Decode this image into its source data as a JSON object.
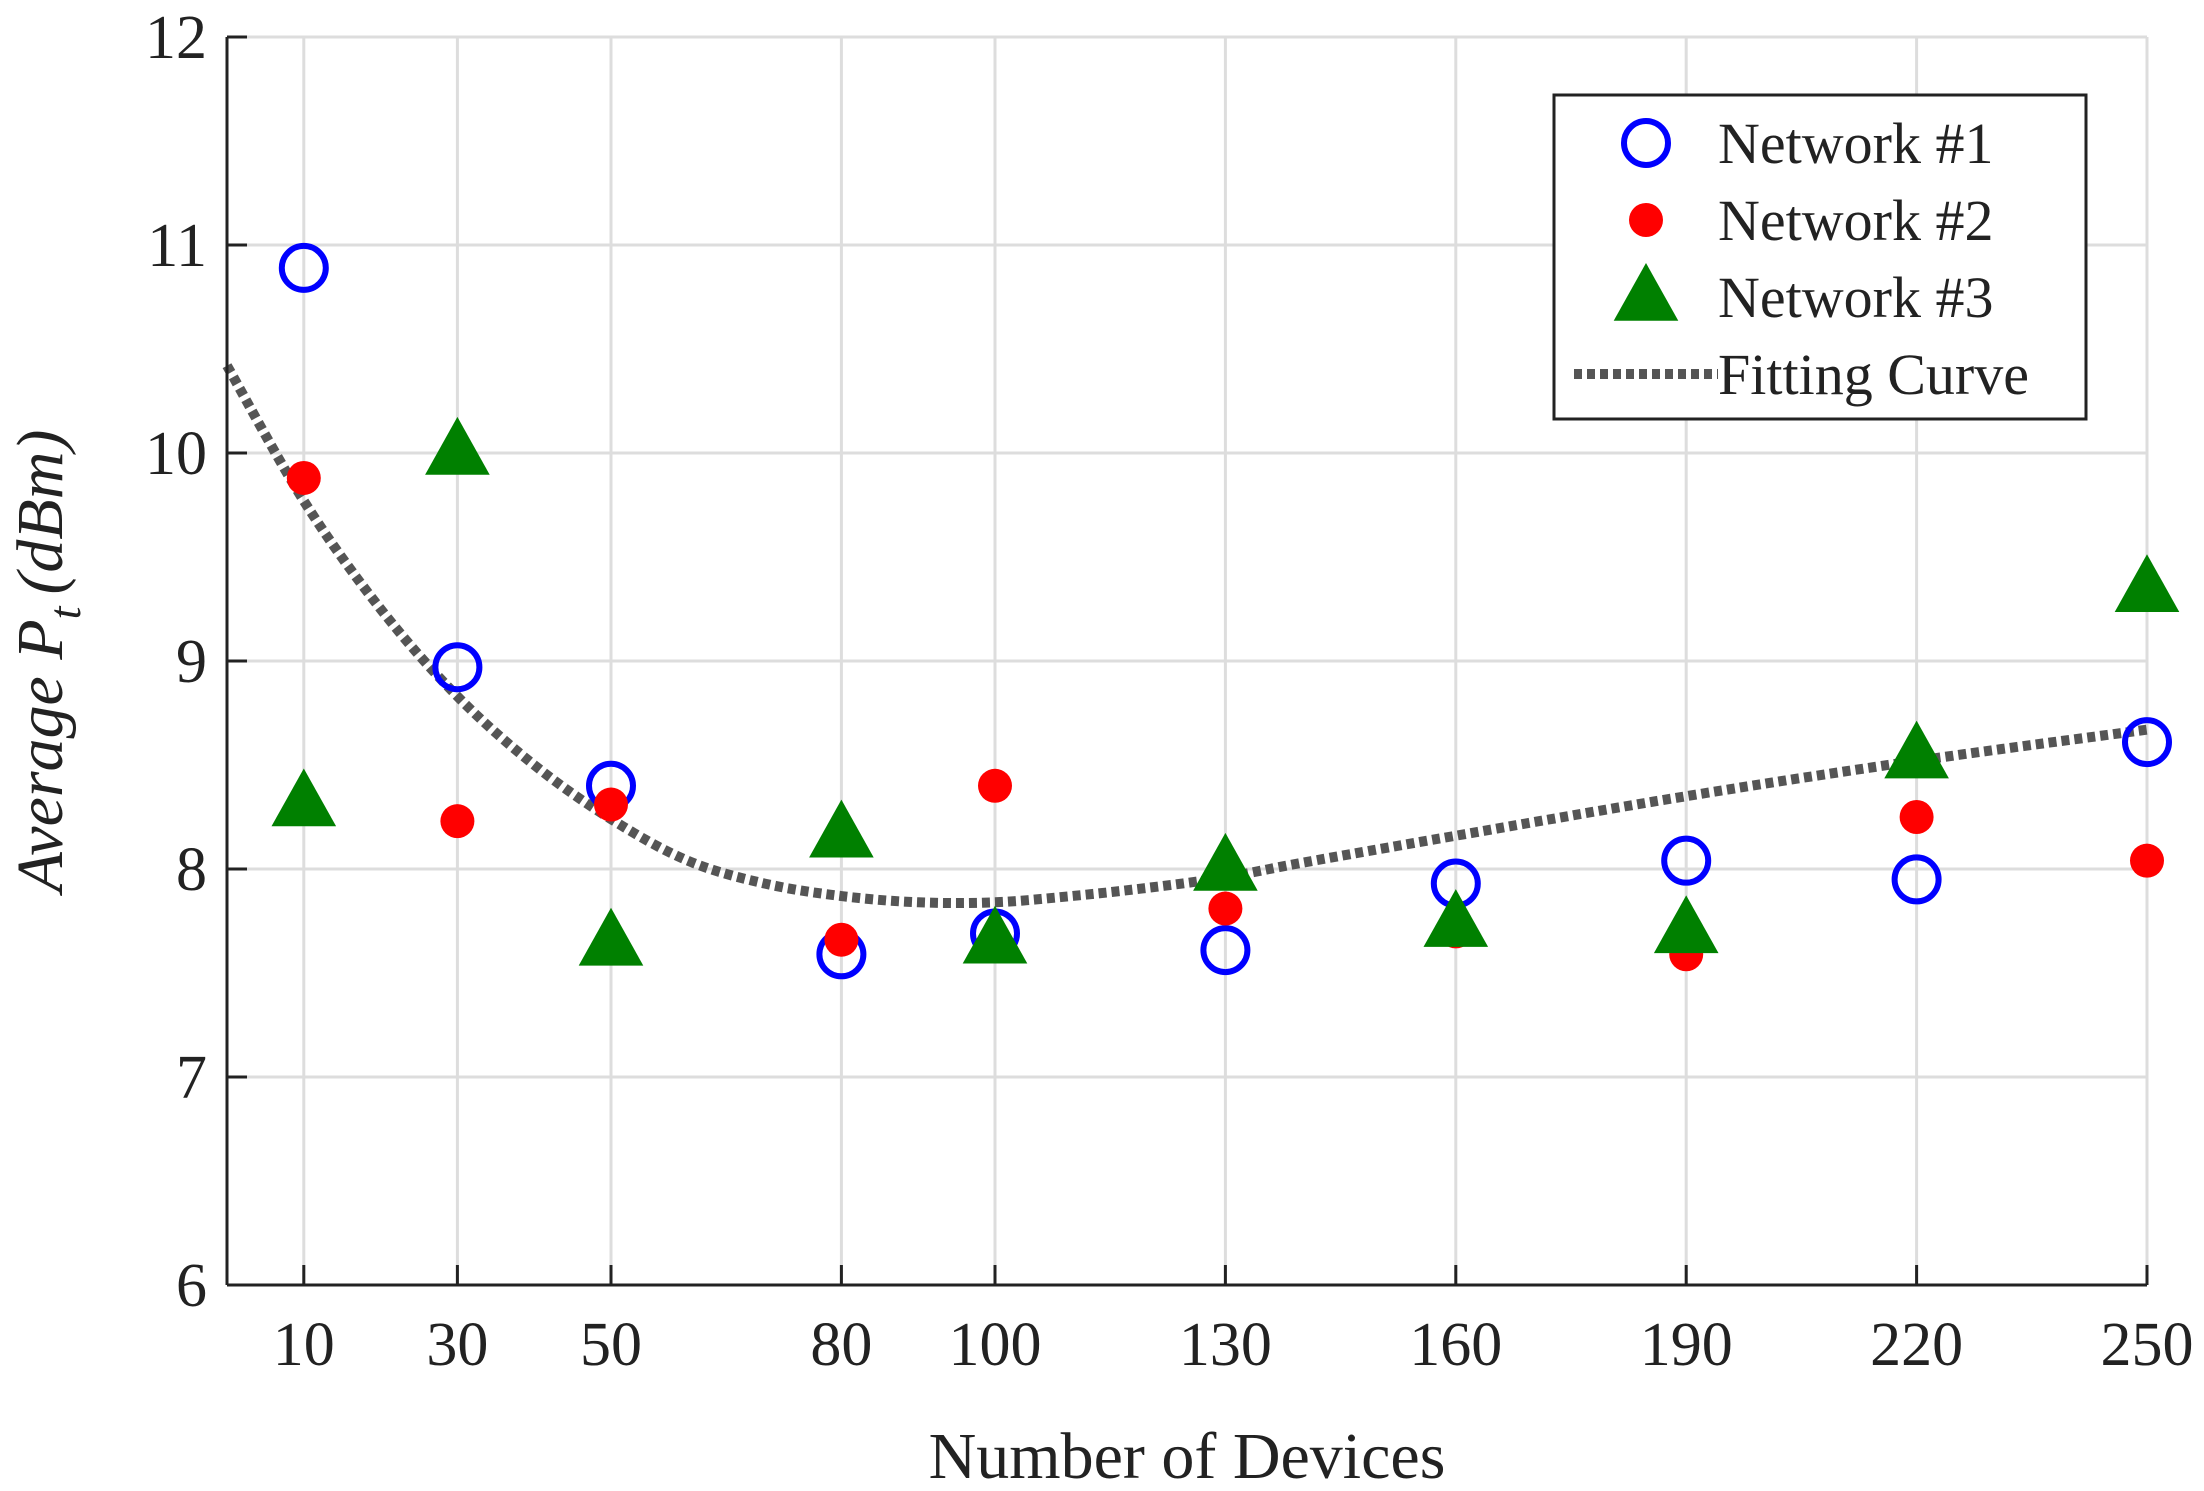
{
  "chart_data": {
    "type": "scatter",
    "xlabel": "Number of Devices",
    "ylabel_main": "Average P",
    "ylabel_sub": "t",
    "ylabel_unit": "(dBm)",
    "xlim": [
      0,
      250
    ],
    "ylim": [
      6,
      12
    ],
    "x_ticks": [
      10,
      30,
      50,
      80,
      100,
      130,
      160,
      190,
      220,
      250
    ],
    "y_ticks": [
      6,
      7,
      8,
      9,
      10,
      11,
      12
    ],
    "grid": true,
    "legend_position": "top-right",
    "series": [
      {
        "name": "Network #1",
        "marker": "open-circle",
        "color": "#0000ff",
        "x": [
          10,
          30,
          50,
          80,
          100,
          130,
          160,
          190,
          220,
          250
        ],
        "y": [
          10.89,
          8.97,
          8.4,
          7.59,
          7.69,
          7.61,
          7.93,
          8.04,
          7.95,
          8.61
        ]
      },
      {
        "name": "Network #2",
        "marker": "filled-circle",
        "color": "#ff0000",
        "x": [
          10,
          30,
          50,
          80,
          100,
          130,
          160,
          190,
          220,
          250
        ],
        "y": [
          9.88,
          8.23,
          8.31,
          7.66,
          8.4,
          7.81,
          7.7,
          7.59,
          8.25,
          8.04
        ]
      },
      {
        "name": "Network #3",
        "marker": "filled-triangle",
        "color": "#008000",
        "x": [
          10,
          30,
          50,
          80,
          100,
          130,
          160,
          190,
          220,
          250
        ],
        "y": [
          8.32,
          10.01,
          7.65,
          8.17,
          7.66,
          8.01,
          7.74,
          7.71,
          8.55,
          9.35
        ]
      },
      {
        "name": "Fitting Curve",
        "marker": "dotted-line",
        "color": "#555555",
        "x": [
          0,
          10,
          20,
          30,
          40,
          50,
          60,
          70,
          80,
          90,
          100,
          110,
          120,
          130,
          140,
          160,
          190,
          220,
          250
        ],
        "y": [
          10.42,
          9.77,
          9.25,
          8.83,
          8.5,
          8.24,
          8.04,
          7.93,
          7.87,
          7.84,
          7.84,
          7.87,
          7.91,
          7.96,
          8.03,
          8.16,
          8.35,
          8.52,
          8.67
        ]
      }
    ]
  }
}
